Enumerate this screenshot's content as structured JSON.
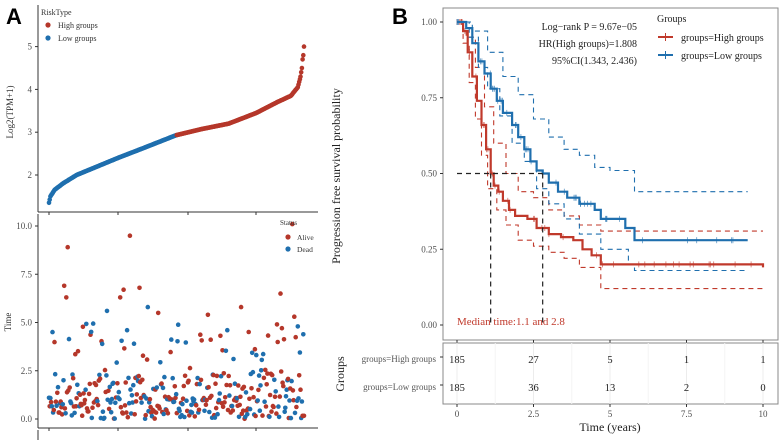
{
  "panels": {
    "a_label": "A",
    "b_label": "B"
  },
  "chart_data": [
    {
      "id": "risk-curve",
      "type": "scatter",
      "title": "",
      "xlabel": "",
      "ylabel": "Log2(TPM+1)",
      "ylim": [
        1.3,
        5.9
      ],
      "yticks": [
        "2",
        "3",
        "4",
        "5"
      ],
      "legend": {
        "title": "RiskType",
        "position": "top-left",
        "entries": [
          {
            "name": "High groups",
            "color": "#B5372A"
          },
          {
            "name": "Low groups",
            "color": "#1F6FAE"
          }
        ]
      },
      "n_per_group": 185,
      "curve_knots": [
        {
          "rank": 0,
          "value": 1.35
        },
        {
          "rank": 2,
          "value": 1.5
        },
        {
          "rank": 8,
          "value": 1.65
        },
        {
          "rank": 20,
          "value": 1.8
        },
        {
          "rank": 40,
          "value": 2.0
        },
        {
          "rank": 70,
          "value": 2.2
        },
        {
          "rank": 100,
          "value": 2.4
        },
        {
          "rank": 140,
          "value": 2.65
        },
        {
          "rank": 184,
          "value": 2.93
        },
        {
          "rank": 220,
          "value": 3.07
        },
        {
          "rank": 260,
          "value": 3.2
        },
        {
          "rank": 300,
          "value": 3.45
        },
        {
          "rank": 330,
          "value": 3.7
        },
        {
          "rank": 350,
          "value": 3.85
        },
        {
          "rank": 360,
          "value": 4.05
        },
        {
          "rank": 364,
          "value": 4.3
        },
        {
          "rank": 366,
          "value": 4.5
        },
        {
          "rank": 367,
          "value": 4.7
        },
        {
          "rank": 368,
          "value": 4.8
        },
        {
          "rank": 369,
          "value": 5.0
        },
        {
          "rank": 369.5,
          "value": 5.15
        },
        {
          "rank": 370,
          "value": 5.75
        }
      ]
    },
    {
      "id": "status-scatter",
      "type": "scatter",
      "xlabel": "",
      "ylabel": "Time",
      "ylim": [
        -0.4,
        10.4
      ],
      "yticks": [
        "0.0",
        "2.5",
        "5.0",
        "7.5",
        "10.0"
      ],
      "legend": {
        "title": "Status",
        "position": "top-right",
        "entries": [
          {
            "name": "Alive",
            "color": "#B5372A"
          },
          {
            "name": "Dead",
            "color": "#1F6FAE"
          }
        ]
      },
      "n_points": 370,
      "seed": 7,
      "outliers": [
        {
          "rank": 27,
          "time": 8.9,
          "status": "Alive"
        },
        {
          "rank": 117,
          "time": 9.5,
          "status": "Alive"
        },
        {
          "rank": 352,
          "time": 10.1,
          "status": "Alive"
        },
        {
          "rank": 22,
          "time": 6.9,
          "status": "Alive"
        },
        {
          "rank": 25,
          "time": 6.3,
          "status": "Alive"
        },
        {
          "rank": 108,
          "time": 6.7,
          "status": "Alive"
        },
        {
          "rank": 131,
          "time": 6.8,
          "status": "Alive"
        },
        {
          "rank": 103,
          "time": 6.3,
          "status": "Alive"
        },
        {
          "rank": 335,
          "time": 6.5,
          "status": "Alive"
        },
        {
          "rank": 143,
          "time": 5.8,
          "status": "Dead"
        },
        {
          "rank": 84,
          "time": 5.6,
          "status": "Dead"
        },
        {
          "rank": 278,
          "time": 5.8,
          "status": "Alive"
        },
        {
          "rank": 158,
          "time": 5.5,
          "status": "Alive"
        },
        {
          "rank": 230,
          "time": 5.4,
          "status": "Alive"
        },
        {
          "rank": 5,
          "time": 4.5,
          "status": "Dead"
        },
        {
          "rank": 113,
          "time": 4.6,
          "status": "Dead"
        },
        {
          "rank": 258,
          "time": 4.6,
          "status": "Dead"
        },
        {
          "rank": 360,
          "time": 4.8,
          "status": "Dead"
        },
        {
          "rank": 355,
          "time": 5.3,
          "status": "Alive"
        },
        {
          "rank": 330,
          "time": 4.9,
          "status": "Alive"
        }
      ]
    },
    {
      "id": "km-plot",
      "type": "line",
      "title": "",
      "xlabel": "Time (years)",
      "ylabel": "Progression free survival probability",
      "xlim": [
        0,
        10
      ],
      "ylim": [
        0,
        1
      ],
      "xticks": [
        "0",
        "2.5",
        "5",
        "7.5",
        "10"
      ],
      "yticks": [
        "0.00",
        "0.25",
        "0.50",
        "0.75",
        "1.00"
      ],
      "annotation_stats": [
        "Log−rank P = 9.67e−05",
        "HR(High groups)=1.808",
        "95%CI(1.343, 2.436)"
      ],
      "median_annotation": "Median time:1.1 and 2.8",
      "median_times": [
        1.1,
        2.8
      ],
      "legend": {
        "title": "Groups",
        "position": "top-right",
        "entries": [
          {
            "name": "groups=High groups",
            "color": "#C0392B"
          },
          {
            "name": "groups=Low groups",
            "color": "#1F6FAE"
          }
        ]
      },
      "series": [
        {
          "name": "groups=High groups",
          "color": "#C0392B",
          "steps": [
            [
              0,
              1.0
            ],
            [
              0.2,
              0.97
            ],
            [
              0.35,
              0.9
            ],
            [
              0.5,
              0.82
            ],
            [
              0.65,
              0.74
            ],
            [
              0.8,
              0.66
            ],
            [
              0.95,
              0.58
            ],
            [
              1.1,
              0.5
            ],
            [
              1.2,
              0.46
            ],
            [
              1.35,
              0.44
            ],
            [
              1.5,
              0.41
            ],
            [
              1.7,
              0.38
            ],
            [
              1.9,
              0.36
            ],
            [
              2.3,
              0.35
            ],
            [
              2.6,
              0.32
            ],
            [
              3.0,
              0.3
            ],
            [
              3.4,
              0.29
            ],
            [
              3.8,
              0.28
            ],
            [
              4.1,
              0.25
            ],
            [
              4.4,
              0.23
            ],
            [
              4.7,
              0.2
            ],
            [
              10,
              0.19
            ]
          ],
          "ci_upper": [
            [
              0,
              1.0
            ],
            [
              0.3,
              0.95
            ],
            [
              0.6,
              0.85
            ],
            [
              0.9,
              0.72
            ],
            [
              1.2,
              0.6
            ],
            [
              1.6,
              0.5
            ],
            [
              2.0,
              0.44
            ],
            [
              2.5,
              0.42
            ],
            [
              3.0,
              0.38
            ],
            [
              3.5,
              0.36
            ],
            [
              4.0,
              0.33
            ],
            [
              4.7,
              0.31
            ],
            [
              10,
              0.31
            ]
          ],
          "ci_lower": [
            [
              0,
              1.0
            ],
            [
              0.2,
              0.93
            ],
            [
              0.4,
              0.8
            ],
            [
              0.6,
              0.68
            ],
            [
              0.8,
              0.56
            ],
            [
              1.0,
              0.45
            ],
            [
              1.3,
              0.38
            ],
            [
              1.6,
              0.33
            ],
            [
              2.0,
              0.28
            ],
            [
              2.5,
              0.26
            ],
            [
              3.0,
              0.24
            ],
            [
              3.5,
              0.22
            ],
            [
              4.0,
              0.19
            ],
            [
              4.7,
              0.12
            ],
            [
              10,
              0.12
            ]
          ],
          "risk_table": [
            185,
            27,
            5,
            1,
            1
          ]
        },
        {
          "name": "groups=Low groups",
          "color": "#1F6FAE",
          "steps": [
            [
              0,
              1.0
            ],
            [
              0.3,
              0.98
            ],
            [
              0.5,
              0.93
            ],
            [
              0.7,
              0.87
            ],
            [
              0.9,
              0.83
            ],
            [
              1.1,
              0.78
            ],
            [
              1.3,
              0.74
            ],
            [
              1.5,
              0.7
            ],
            [
              1.8,
              0.66
            ],
            [
              2.0,
              0.62
            ],
            [
              2.2,
              0.58
            ],
            [
              2.4,
              0.54
            ],
            [
              2.6,
              0.51
            ],
            [
              2.8,
              0.5
            ],
            [
              3.0,
              0.47
            ],
            [
              3.3,
              0.44
            ],
            [
              3.6,
              0.42
            ],
            [
              4.0,
              0.4
            ],
            [
              4.5,
              0.38
            ],
            [
              4.7,
              0.35
            ],
            [
              5.3,
              0.35
            ],
            [
              5.5,
              0.32
            ],
            [
              5.8,
              0.28
            ],
            [
              9.5,
              0.28
            ]
          ],
          "ci_upper": [
            [
              0,
              1.0
            ],
            [
              0.5,
              0.97
            ],
            [
              1.0,
              0.9
            ],
            [
              1.5,
              0.82
            ],
            [
              2.0,
              0.76
            ],
            [
              2.5,
              0.68
            ],
            [
              3.0,
              0.62
            ],
            [
              3.5,
              0.58
            ],
            [
              4.0,
              0.56
            ],
            [
              4.5,
              0.52
            ],
            [
              5.0,
              0.51
            ],
            [
              5.8,
              0.44
            ],
            [
              9.5,
              0.44
            ]
          ],
          "ci_lower": [
            [
              0,
              1.0
            ],
            [
              0.4,
              0.95
            ],
            [
              0.7,
              0.85
            ],
            [
              1.0,
              0.78
            ],
            [
              1.4,
              0.69
            ],
            [
              1.8,
              0.6
            ],
            [
              2.2,
              0.54
            ],
            [
              2.6,
              0.45
            ],
            [
              3.0,
              0.4
            ],
            [
              3.5,
              0.35
            ],
            [
              4.0,
              0.3
            ],
            [
              4.7,
              0.25
            ],
            [
              5.3,
              0.25
            ],
            [
              5.6,
              0.2
            ],
            [
              5.8,
              0.18
            ],
            [
              9.5,
              0.18
            ]
          ],
          "risk_table": [
            185,
            36,
            13,
            2,
            0
          ]
        }
      ],
      "risk_table_ylabel": "Groups",
      "risk_table_rows": [
        "groups=High groups",
        "groups=Low groups"
      ]
    }
  ]
}
